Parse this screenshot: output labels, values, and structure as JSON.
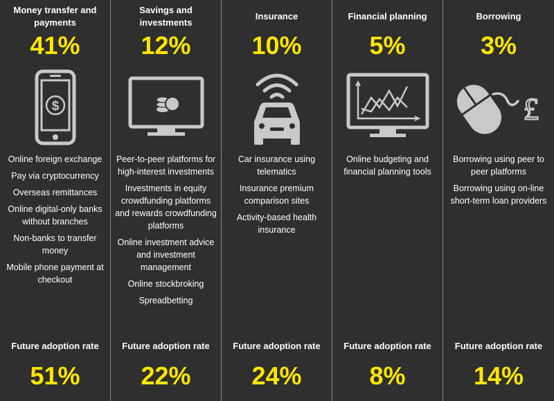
{
  "columns": [
    {
      "title": "Money transfer and payments",
      "percent": "41%",
      "icon": "smartphone-dollar-icon",
      "items": [
        "Online foreign exchange",
        "Pay via cryptocurrency",
        "Overseas remittances",
        "Online digital-only banks without branches",
        "Non-banks to transfer money",
        "Mobile phone payment at checkout"
      ],
      "future_label": "Future adoption rate",
      "future_percent": "51%"
    },
    {
      "title": "Savings and investments",
      "percent": "12%",
      "icon": "monitor-coins-icon",
      "items": [
        "Peer-to-peer platforms for high-interest investments",
        "Investments in equity crowdfunding platforms and rewards crowdfunding platforms",
        "Online investment advice and investment management",
        "Online stockbroking",
        "Spreadbetting"
      ],
      "future_label": "Future adoption rate",
      "future_percent": "22%"
    },
    {
      "title": "Insurance",
      "percent": "10%",
      "icon": "connected-car-icon",
      "items": [
        "Car insurance using telematics",
        "Insurance premium comparison sites",
        "Activity-based health insurance"
      ],
      "future_label": "Future adoption rate",
      "future_percent": "24%"
    },
    {
      "title": "Financial planning",
      "percent": "5%",
      "icon": "monitor-chart-icon",
      "items": [
        "Online budgeting and financial planning tools"
      ],
      "future_label": "Future adoption rate",
      "future_percent": "8%"
    },
    {
      "title": "Borrowing",
      "percent": "3%",
      "icon": "mouse-pound-icon",
      "items": [
        "Borrowing using peer to peer platforms",
        "Borrowing using on-line short-term loan providers"
      ],
      "future_label": "Future adoption rate",
      "future_percent": "14%"
    }
  ]
}
